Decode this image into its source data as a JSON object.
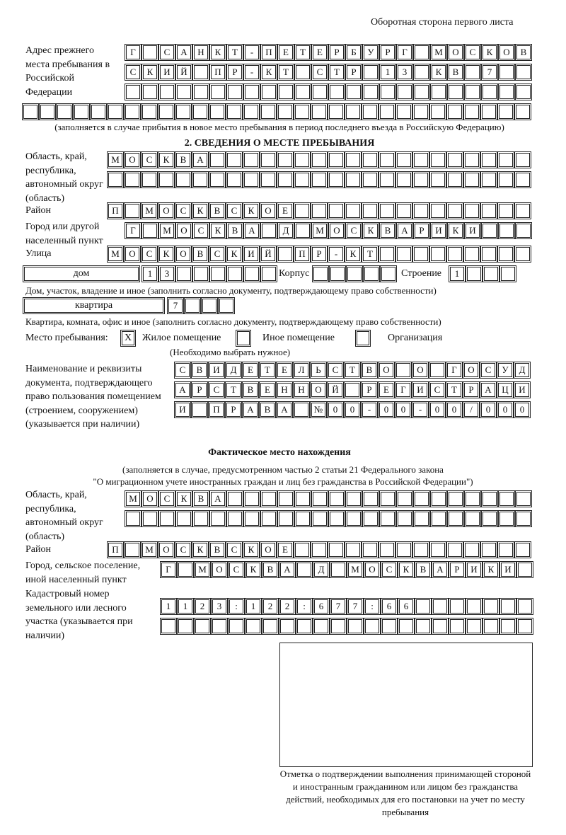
{
  "header": {
    "page_side": "Оборотная сторона первого листа"
  },
  "previous_address": {
    "label": "Адрес прежнего места пребывания в Российской Федерации",
    "rows": [
      "Г САНКТ-ПЕТЕРБУРГ МОСКОВ",
      "СКИЙ ПР-КТ СТР 13 КВ 7",
      "",
      ""
    ],
    "note": "(заполняется в случае прибытия в новое место пребывания в период последнего въезда в Российскую Федерацию)"
  },
  "section2": {
    "title": "2. СВЕДЕНИЯ О МЕСТЕ ПРЕБЫВАНИЯ",
    "region_label": "Область, край, республика, автономный округ (область)",
    "region_rows": [
      "МОСКВА",
      ""
    ],
    "district_label": "Район",
    "district": "П МОСКВСКОЕ",
    "city_label": "Город или другой населенный пункт",
    "city": "Г МОСКВА Д МОСКВАРИКИ",
    "street_label": "Улица",
    "street": "МОСКОВСКИЙ ПР-КТ",
    "house_type": "дом",
    "house": "13",
    "korpus_label": "Корпус",
    "korpus": "",
    "building_label": "Строение",
    "building": "1",
    "house_note": "Дом, участок, владение и иное (заполнить согласно документу, подтверждающему право собственности)",
    "apt_type": "квартира",
    "apt": "7",
    "apt_note": "Квартира, комната, офис и иное (заполнить согласно документу, подтверждающему право собственности)",
    "stay_place_label": "Место пребывания:",
    "options": [
      {
        "label": "Жилое помещение",
        "mark": "Х"
      },
      {
        "label": "Иное помещение",
        "mark": ""
      },
      {
        "label": "Организация",
        "mark": ""
      }
    ],
    "choose_note": "(Необходимо выбрать нужное)",
    "doc_label": "Наименование и реквизиты документа, подтверждающего право пользования помещением (строением, сооружением) (указывается при наличии)",
    "doc_rows": [
      "СВИДЕТЕЛЬСТВО О ГОСУД",
      "АРСТВЕННОЙ РЕГИСТРАЦИ",
      "И ПРАВА №00-00-00/000"
    ]
  },
  "actual": {
    "title": "Фактическое место нахождения",
    "note1": "(заполняется в случае, предусмотренном частью 2 статьи 21 Федерального закона",
    "note2": "\"О миграционном учете иностранных граждан и лиц без гражданства в Российской Федерации\")",
    "region_label": "Область, край, республика, автономный округ (область)",
    "region_rows": [
      "МОСКВА",
      ""
    ],
    "district_label": "Район",
    "district": "П МОСКВСКОЕ",
    "city_label": "Город, сельское поселение, иной населенный пункт",
    "city": "Г МОСКВА Д МОСКВАРИКИ",
    "cadastre_label": "Кадастровый номер земельного или лесного участка (указывается при наличии)",
    "cadastre_rows": [
      "1123:122:677:66",
      ""
    ]
  },
  "stamp": {
    "caption": "Отметка о подтверждении выполнения принимающей стороной и иностранным гражданином или лицом без гражданства действий, необходимых для его постановки на учет по месту пребывания"
  }
}
